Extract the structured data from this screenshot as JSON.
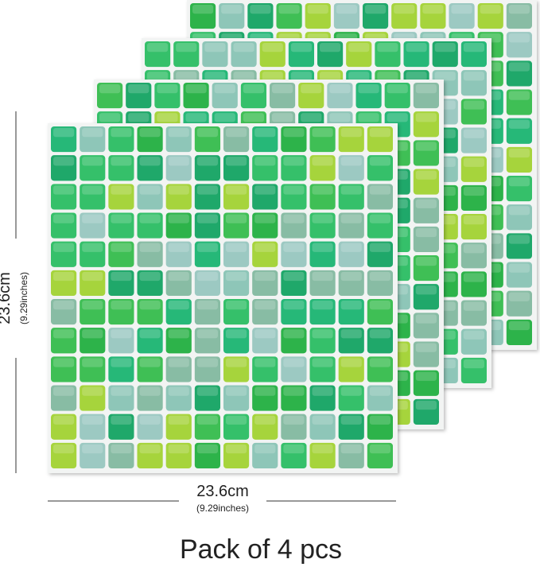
{
  "dimensions": {
    "height": {
      "metric": "23.6cm",
      "imperial": "(9.29inches)"
    },
    "width": {
      "metric": "23.6cm",
      "imperial": "(9.29inches)"
    }
  },
  "caption": "Pack of 4 pcs"
}
